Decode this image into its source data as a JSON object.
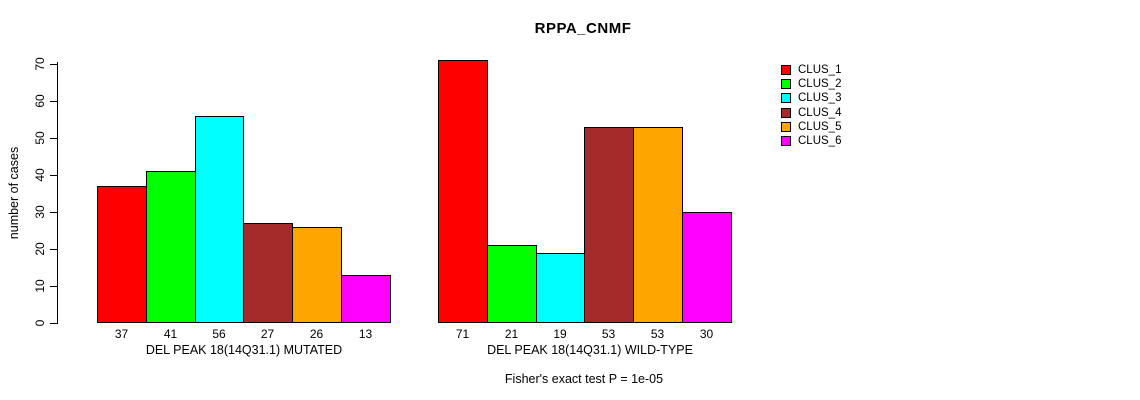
{
  "chart_data": {
    "type": "bar",
    "title": "RPPA_CNMF",
    "ylabel": "number of cases",
    "ylim": [
      0,
      70
    ],
    "yticks": [
      0,
      10,
      20,
      30,
      40,
      50,
      60,
      70
    ],
    "grid": false,
    "legend_position": "right",
    "bar_value_labels": true,
    "categories": [
      "DEL PEAK 18(14Q31.1) MUTATED",
      "DEL PEAK 18(14Q31.1) WILD-TYPE"
    ],
    "series": [
      {
        "name": "CLUS_1",
        "color": "#FF0000",
        "values": [
          37,
          71
        ]
      },
      {
        "name": "CLUS_2",
        "color": "#00FF00",
        "values": [
          41,
          21
        ]
      },
      {
        "name": "CLUS_3",
        "color": "#00FFFF",
        "values": [
          56,
          19
        ]
      },
      {
        "name": "CLUS_4",
        "color": "#A52A2A",
        "values": [
          27,
          53
        ]
      },
      {
        "name": "CLUS_5",
        "color": "#FFA500",
        "values": [
          26,
          53
        ]
      },
      {
        "name": "CLUS_6",
        "color": "#FF00FF",
        "values": [
          13,
          30
        ]
      }
    ],
    "annotation": "Fisher's exact test P = 1e-05"
  }
}
